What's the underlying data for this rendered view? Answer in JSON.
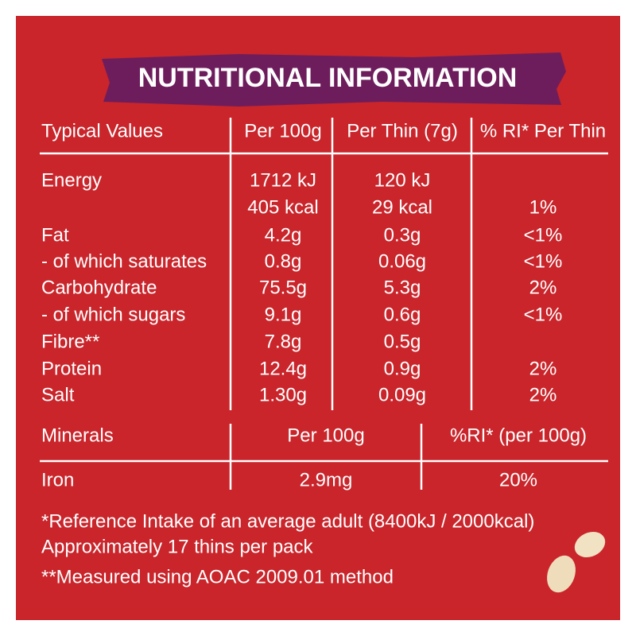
{
  "title": "NUTRITIONAL INFORMATION",
  "table": {
    "headers": [
      "Typical Values",
      "Per 100g",
      "Per Thin (7g)",
      "% RI* Per Thin"
    ],
    "rows": [
      [
        "Energy",
        "1712 kJ",
        "120 kJ",
        null
      ],
      [
        null,
        "405 kcal",
        "29 kcal",
        "1%"
      ],
      [
        "Fat",
        "4.2g",
        "0.3g",
        "<1%"
      ],
      [
        "- of which saturates",
        "0.8g",
        "0.06g",
        "<1%"
      ],
      [
        "Carbohydrate",
        "75.5g",
        "5.3g",
        "2%"
      ],
      [
        "- of which sugars",
        "9.1g",
        "0.6g",
        "<1%"
      ],
      [
        "Fibre**",
        "7.8g",
        "0.5g",
        null
      ],
      [
        "Protein",
        "12.4g",
        "0.9g",
        "2%"
      ],
      [
        "Salt",
        "1.30g",
        "0.09g",
        "2%"
      ]
    ]
  },
  "minerals": {
    "headers": [
      "Minerals",
      "Per 100g",
      "%RI* (per 100g)"
    ],
    "rows": [
      [
        "Iron",
        "2.9mg",
        "20%"
      ]
    ]
  },
  "footnotes": [
    "*Reference Intake of an average adult (8400kJ / 2000kcal)",
    "Approximately 17 thins per pack",
    "**Measured using AOAC 2009.01 method"
  ]
}
